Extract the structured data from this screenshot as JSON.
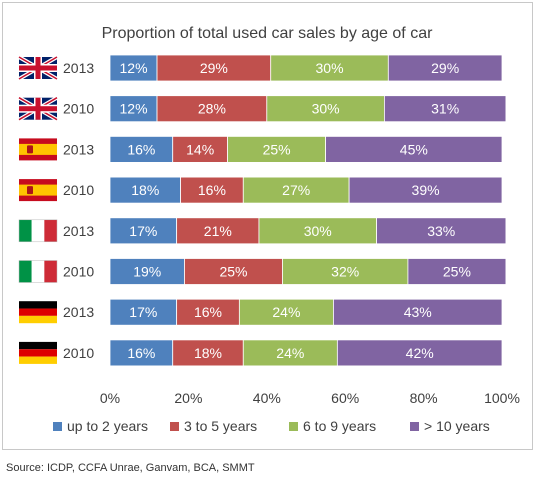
{
  "chart_data": {
    "type": "bar",
    "stacked": true,
    "orientation": "horizontal",
    "percent_stacked": true,
    "title": "Proportion of total used car sales by age of car",
    "categories": [
      {
        "flag": "uk-flag",
        "label": "2013"
      },
      {
        "flag": "uk-flag",
        "label": "2010"
      },
      {
        "flag": "spain-flag",
        "label": "2013"
      },
      {
        "flag": "spain-flag",
        "label": "2010"
      },
      {
        "flag": "italy-flag",
        "label": "2013"
      },
      {
        "flag": "italy-flag",
        "label": "2010"
      },
      {
        "flag": "germany-flag",
        "label": "2013"
      },
      {
        "flag": "germany-flag",
        "label": "2010"
      }
    ],
    "series": [
      {
        "name": "up to 2 years",
        "color": "#4f81bd",
        "values": [
          12,
          12,
          16,
          18,
          17,
          19,
          17,
          16
        ],
        "labels": [
          "12%",
          "12%",
          "16%",
          "18%",
          "17%",
          "19%",
          "17%",
          "16%"
        ]
      },
      {
        "name": "3 to 5 years",
        "color": "#c0504d",
        "values": [
          29,
          28,
          14,
          16,
          21,
          25,
          16,
          18
        ],
        "labels": [
          "29%",
          "28%",
          "14%",
          "16%",
          "21%",
          "25%",
          "16%",
          "18%"
        ]
      },
      {
        "name": "6 to 9 years",
        "color": "#9bbb59",
        "values": [
          30,
          30,
          25,
          27,
          30,
          32,
          24,
          24
        ],
        "labels": [
          "30%",
          "30%",
          "25%",
          "27%",
          "30%",
          "32%",
          "24%",
          "24%"
        ]
      },
      {
        "name": "> 10 years",
        "color": "#8064a2",
        "values": [
          29,
          31,
          45,
          39,
          33,
          25,
          43,
          42
        ],
        "labels": [
          "29%",
          "31%",
          "45%",
          "39%",
          "33%",
          "25%",
          "43%",
          "42%"
        ]
      }
    ],
    "x_ticks": [
      "0%",
      "20%",
      "40%",
      "60%",
      "80%",
      "100%"
    ],
    "xlim": [
      0,
      100
    ],
    "grid": false,
    "legend_position": "bottom"
  },
  "source": "Source: ICDP, CCFA Unrae, Ganvam, BCA, SMMT"
}
